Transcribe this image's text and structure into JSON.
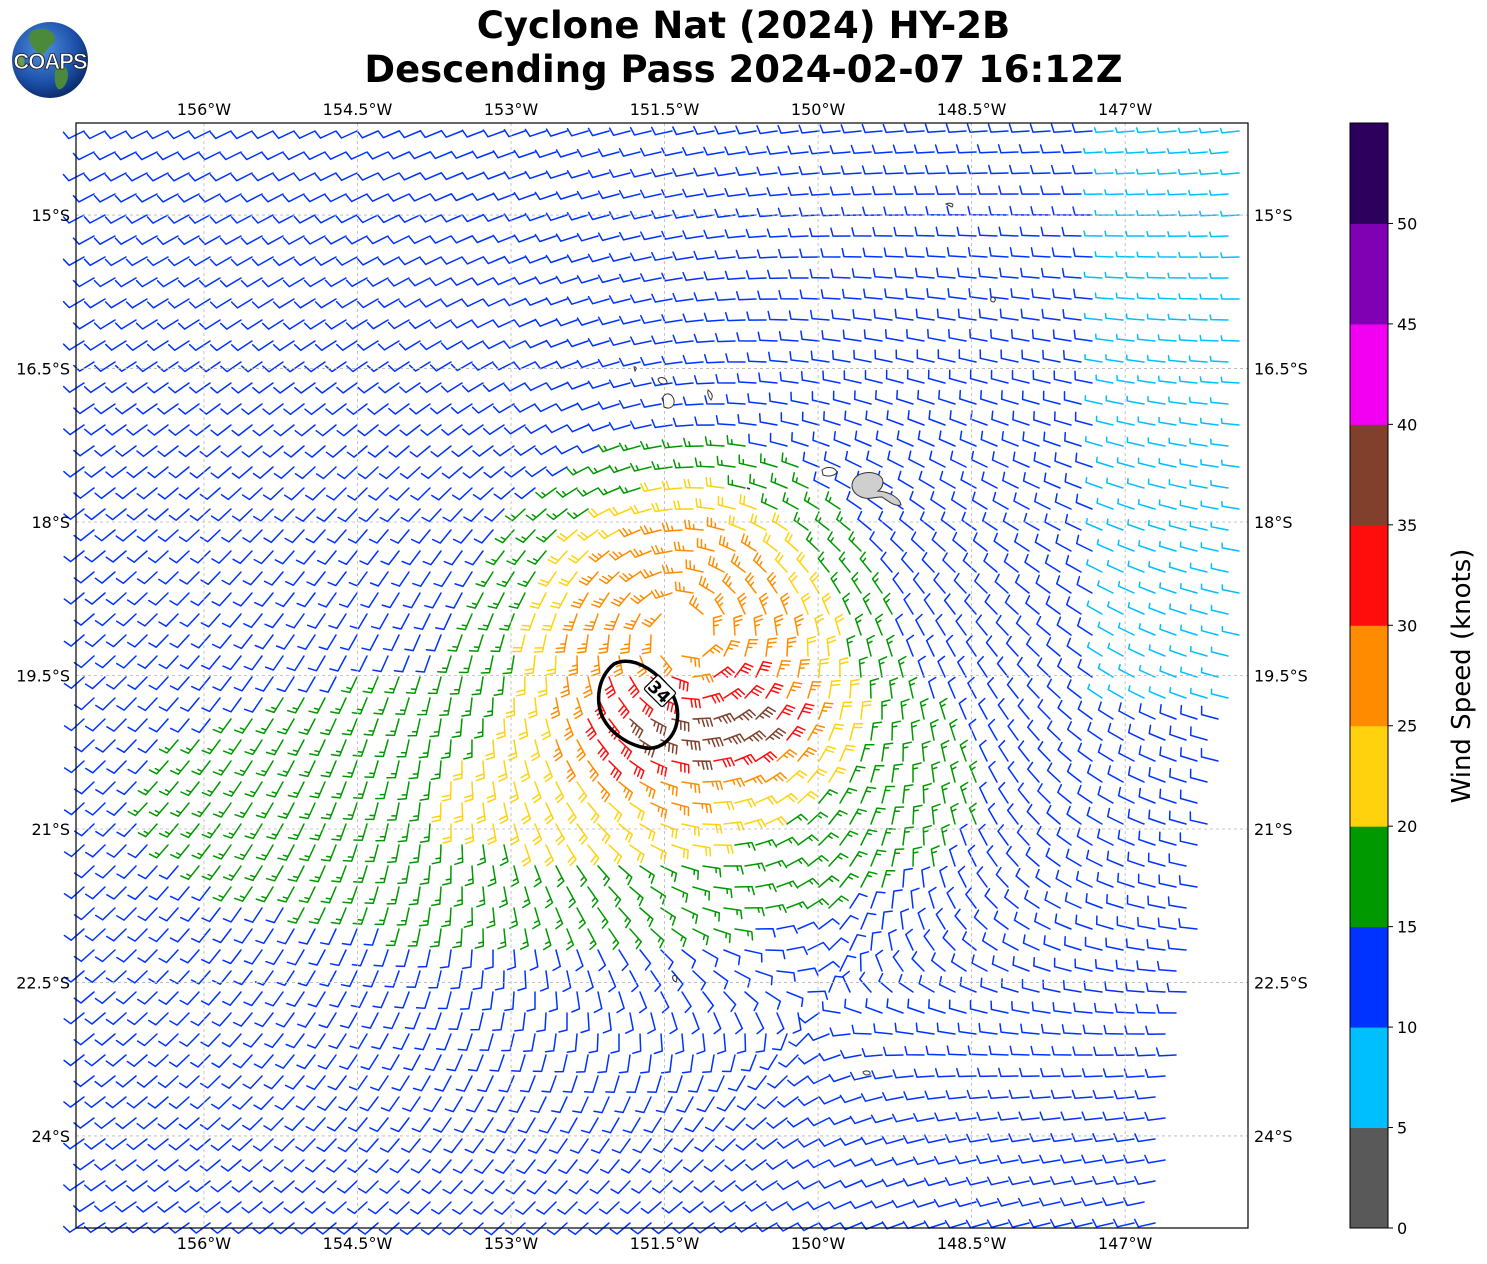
{
  "title": {
    "line1": "Cyclone Nat (2024) HY-2B",
    "line2": "Descending Pass 2024-02-07 16:12Z"
  },
  "logo": {
    "text": "COAPS",
    "icon": "globe-logo-icon"
  },
  "map": {
    "lon_labels": [
      "156°W",
      "154.5°W",
      "153°W",
      "151.5°W",
      "150°W",
      "148.5°W",
      "147°W"
    ],
    "lon_values": [
      -156,
      -154.5,
      -153,
      -151.5,
      -150,
      -148.5,
      -147
    ],
    "lat_labels": [
      "15°S",
      "16.5°S",
      "18°S",
      "19.5°S",
      "21°S",
      "22.5°S",
      "24°S"
    ],
    "lat_values": [
      -15,
      -16.5,
      -18,
      -19.5,
      -21,
      -22.5,
      -24
    ],
    "lon_range": [
      -157.25,
      -145.8
    ],
    "lat_range": [
      -14.1,
      -24.9
    ],
    "cyclone_center": {
      "lon": -151.3,
      "lat": -19.1
    },
    "contour_34kt_label": "34",
    "grid": true
  },
  "colorbar": {
    "label": "Wind Speed (knots)",
    "ticks": [
      "0",
      "5",
      "10",
      "15",
      "20",
      "25",
      "30",
      "35",
      "40",
      "45",
      "50"
    ],
    "bins": [
      {
        "from": 0,
        "to": 5,
        "color": "#595959"
      },
      {
        "from": 5,
        "to": 10,
        "color": "#00bfff"
      },
      {
        "from": 10,
        "to": 15,
        "color": "#0033ff"
      },
      {
        "from": 15,
        "to": 20,
        "color": "#009900"
      },
      {
        "from": 20,
        "to": 25,
        "color": "#ffd20d"
      },
      {
        "from": 25,
        "to": 30,
        "color": "#ff8c00"
      },
      {
        "from": 30,
        "to": 35,
        "color": "#ff0d0d"
      },
      {
        "from": 35,
        "to": 40,
        "color": "#80402b"
      },
      {
        "from": 40,
        "to": 45,
        "color": "#f200f2"
      },
      {
        "from": 45,
        "to": 50,
        "color": "#8000b3"
      },
      {
        "from": 50,
        "to": 55,
        "color": "#2d005e"
      }
    ]
  }
}
